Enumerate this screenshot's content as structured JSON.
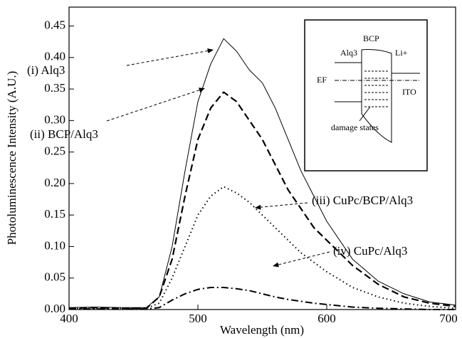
{
  "chart_data": {
    "type": "line",
    "x_label": "Wavelength (nm)",
    "y_label": "Photoluminescence Intensity (A.U.)",
    "xlim": [
      400,
      700
    ],
    "ylim": [
      0,
      0.48
    ],
    "xticks": [
      400,
      500,
      600,
      700
    ],
    "yticks": [
      {
        "value": 0,
        "label": "0.00"
      },
      0.05,
      {
        "value": 0.1,
        "label": "0.10"
      },
      0.15,
      {
        "value": 0.2,
        "label": "0.20"
      },
      0.25,
      {
        "value": 0.3,
        "label": "0.30"
      },
      0.35,
      {
        "value": 0.4,
        "label": "0.40"
      },
      0.45
    ],
    "x": [
      400,
      420,
      440,
      460,
      470,
      480,
      490,
      500,
      510,
      520,
      530,
      540,
      550,
      560,
      570,
      580,
      590,
      600,
      620,
      640,
      660,
      680,
      700
    ],
    "series": [
      {
        "name": "(i) Alq3",
        "color": "#000000",
        "style": "solid",
        "values": [
          0.003,
          0.004,
          0.003,
          0.003,
          0.02,
          0.1,
          0.22,
          0.33,
          0.39,
          0.43,
          0.41,
          0.38,
          0.36,
          0.32,
          0.27,
          0.22,
          0.18,
          0.14,
          0.08,
          0.045,
          0.025,
          0.012,
          0.007
        ]
      },
      {
        "name": "(ii) BCP/Alq3",
        "color": "#000000",
        "style": "dashed",
        "values": [
          0.002,
          0.003,
          0.002,
          0.002,
          0.02,
          0.08,
          0.18,
          0.27,
          0.32,
          0.345,
          0.33,
          0.3,
          0.27,
          0.23,
          0.19,
          0.16,
          0.13,
          0.11,
          0.07,
          0.04,
          0.02,
          0.01,
          0.005
        ]
      },
      {
        "name": "(iii) CuPc/BCP/Alq3",
        "color": "#000000",
        "style": "dotted",
        "values": [
          0.002,
          0.002,
          0.002,
          0.002,
          0.01,
          0.05,
          0.1,
          0.15,
          0.18,
          0.195,
          0.185,
          0.17,
          0.15,
          0.13,
          0.11,
          0.09,
          0.075,
          0.06,
          0.035,
          0.02,
          0.01,
          0.005,
          0.002
        ]
      },
      {
        "name": "(iv) CuPc/Alq3",
        "color": "#000000",
        "style": "dashdot",
        "values": [
          0.001,
          0.001,
          0.001,
          0.001,
          0.003,
          0.015,
          0.025,
          0.032,
          0.035,
          0.035,
          0.033,
          0.03,
          0.025,
          0.02,
          0.016,
          0.013,
          0.01,
          0.008,
          0.004,
          0.002,
          0.001,
          0.0,
          0.0
        ]
      }
    ],
    "inset": {
      "labels": [
        "Alq3",
        "BCP",
        "Li+",
        "EF",
        "ITO",
        "damage states"
      ]
    }
  }
}
